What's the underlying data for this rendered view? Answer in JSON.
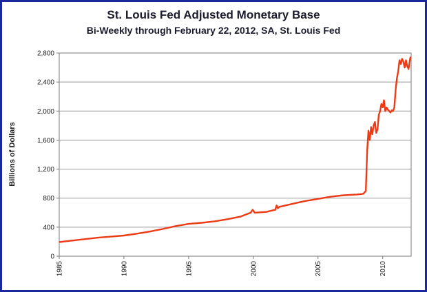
{
  "chart_data": {
    "type": "line",
    "title": "St. Louis Fed Adjusted Monetary Base",
    "subtitle": "Bi-Weekly through February 22, 2012, SA, St. Louis Fed",
    "xlabel": "",
    "ylabel": "Billions of Dollars",
    "xlim": [
      1985,
      2012.2
    ],
    "ylim": [
      0,
      2800
    ],
    "grid": true,
    "legend": "none",
    "y_ticks": [
      "0",
      "400",
      "800",
      "1,200",
      "1,600",
      "2,000",
      "2,400",
      "2,800"
    ],
    "x_ticks": [
      "1985",
      "1990",
      "1995",
      "2000",
      "2005",
      "2010"
    ],
    "line_color": "#ee3a14",
    "series": [
      {
        "name": "Adjusted Monetary Base",
        "x": [
          1985,
          1986,
          1987,
          1988,
          1989,
          1990,
          1991,
          1992,
          1993,
          1994,
          1995,
          1996,
          1997,
          1998,
          1999,
          1999.8,
          1999.95,
          2000.1,
          2001,
          2001.7,
          2001.8,
          2001.9,
          2002,
          2003,
          2004,
          2005,
          2006,
          2007,
          2008,
          2008.5,
          2008.7,
          2008.8,
          2008.9,
          2009,
          2009.1,
          2009.2,
          2009.3,
          2009.4,
          2009.5,
          2009.6,
          2009.7,
          2009.8,
          2009.9,
          2010,
          2010.1,
          2010.2,
          2010.3,
          2010.4,
          2010.5,
          2010.6,
          2010.7,
          2010.8,
          2010.9,
          2011,
          2011.1,
          2011.2,
          2011.3,
          2011.4,
          2011.5,
          2011.6,
          2011.7,
          2011.8,
          2011.9,
          2012,
          2012.1,
          2012.15
        ],
        "values": [
          195,
          215,
          235,
          255,
          270,
          285,
          310,
          340,
          375,
          415,
          445,
          460,
          480,
          510,
          545,
          600,
          640,
          600,
          610,
          640,
          700,
          660,
          680,
          720,
          760,
          790,
          820,
          840,
          850,
          860,
          900,
          1450,
          1730,
          1600,
          1780,
          1680,
          1800,
          1850,
          1700,
          1750,
          1950,
          2000,
          2100,
          2050,
          2150,
          2000,
          2050,
          2020,
          2000,
          1980,
          2010,
          2000,
          2050,
          2300,
          2450,
          2550,
          2700,
          2650,
          2720,
          2680,
          2600,
          2700,
          2620,
          2580,
          2700,
          2750
        ]
      }
    ]
  }
}
